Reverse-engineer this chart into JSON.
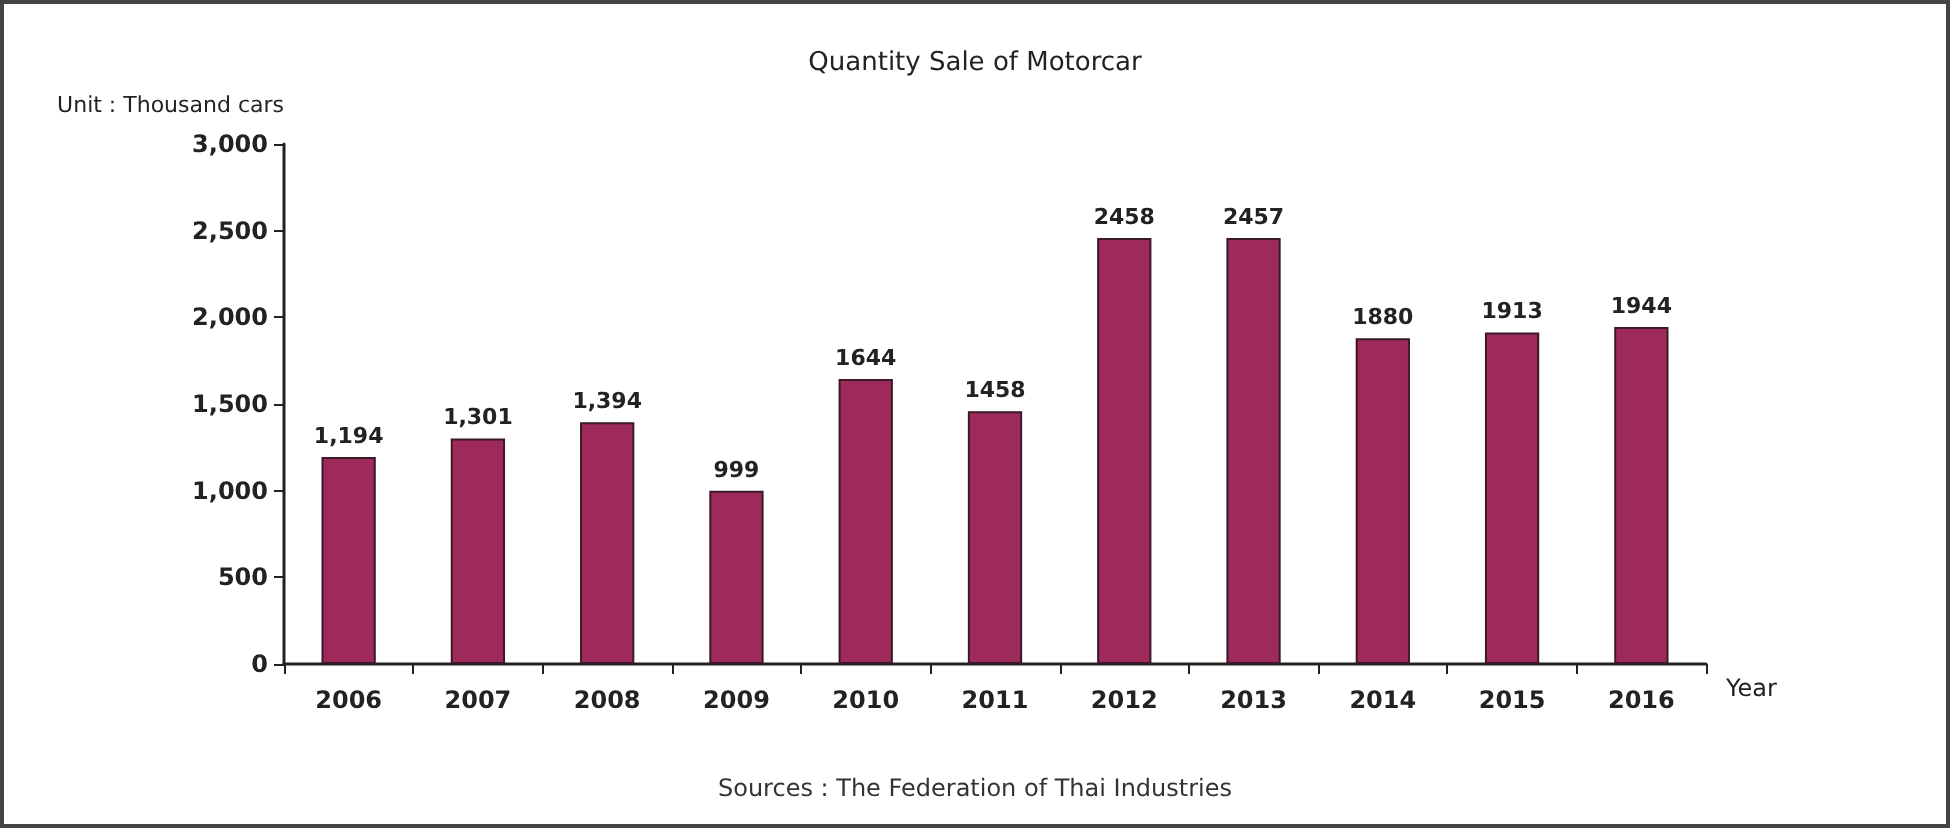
{
  "chart_data": {
    "type": "bar",
    "title": "Quantity Sale of Motorcar",
    "ylabel": "Unit : Thousand cars",
    "xlabel": "Year",
    "categories": [
      "2006",
      "2007",
      "2008",
      "2009",
      "2010",
      "2011",
      "2012",
      "2013",
      "2014",
      "2015",
      "2016"
    ],
    "values": [
      1194,
      1301,
      1394,
      999,
      1644,
      1458,
      2458,
      2457,
      1880,
      1913,
      1944
    ],
    "value_labels": [
      "1,194",
      "1,301",
      "1,394",
      "999",
      "1644",
      "1458",
      "2458",
      "2457",
      "1880",
      "1913",
      "1944"
    ],
    "color": "#9e2a5c",
    "ylim": [
      0,
      3000
    ],
    "yticks": [
      {
        "value": 0,
        "label": "0"
      },
      {
        "value": 500,
        "label": "500"
      },
      {
        "value": 1000,
        "label": "1,000"
      },
      {
        "value": 1500,
        "label": "1,500"
      },
      {
        "value": 2000,
        "label": "2,000"
      },
      {
        "value": 2500,
        "label": "2,500"
      },
      {
        "value": 3000,
        "label": "3,000"
      }
    ],
    "grid": false,
    "annotations": [
      "Sources : The Federation of Thai Industries"
    ]
  }
}
